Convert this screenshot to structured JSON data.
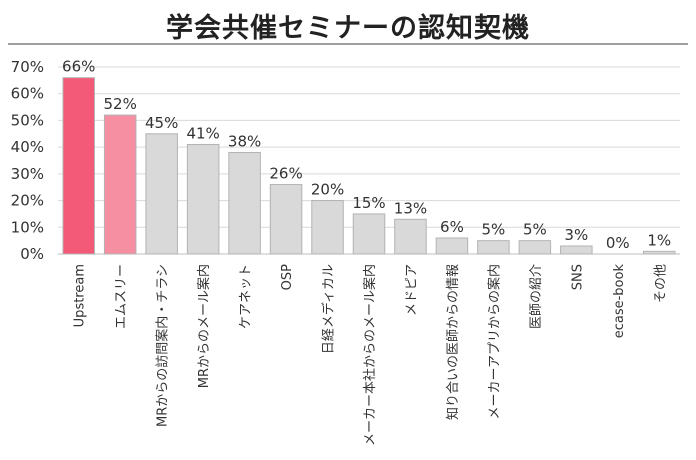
{
  "chart_data": {
    "type": "bar",
    "title": "学会共催セミナーの認知契機",
    "xlabel": "",
    "ylabel": "",
    "ylim": [
      0,
      70
    ],
    "yticks": [
      "0%",
      "10%",
      "20%",
      "30%",
      "40%",
      "50%",
      "60%",
      "70%"
    ],
    "ytick_values": [
      0,
      10,
      20,
      30,
      40,
      50,
      60,
      70
    ],
    "grid": true,
    "categories": [
      "Upstream",
      "エムスリー",
      "MRからの訪問案内・チラシ",
      "MRからのメール案内",
      "ケアネット",
      "OSP",
      "日経メディカル",
      "メーカー本社からのメール案内",
      "メドピア",
      "知り合いの医師からの情報",
      "メーカーアプリからの案内",
      "医師の紹介",
      "SNS",
      "ecase-book",
      "その他"
    ],
    "values": [
      66,
      52,
      45,
      41,
      38,
      26,
      20,
      15,
      13,
      6,
      5,
      5,
      3,
      0,
      1
    ],
    "data_labels": [
      "66%",
      "52%",
      "45%",
      "41%",
      "38%",
      "26%",
      "20%",
      "15%",
      "13%",
      "6%",
      "5%",
      "5%",
      "3%",
      "0%",
      "1%"
    ],
    "bar_colors": [
      "#f25a78",
      "#f78fa3",
      "#d9d9d9",
      "#d9d9d9",
      "#d9d9d9",
      "#d9d9d9",
      "#d9d9d9",
      "#d9d9d9",
      "#d9d9d9",
      "#d9d9d9",
      "#d9d9d9",
      "#d9d9d9",
      "#d9d9d9",
      "#d9d9d9",
      "#d9d9d9"
    ],
    "bar_stroke": "#b3b3b3",
    "grid_color": "#d9d9d9"
  }
}
